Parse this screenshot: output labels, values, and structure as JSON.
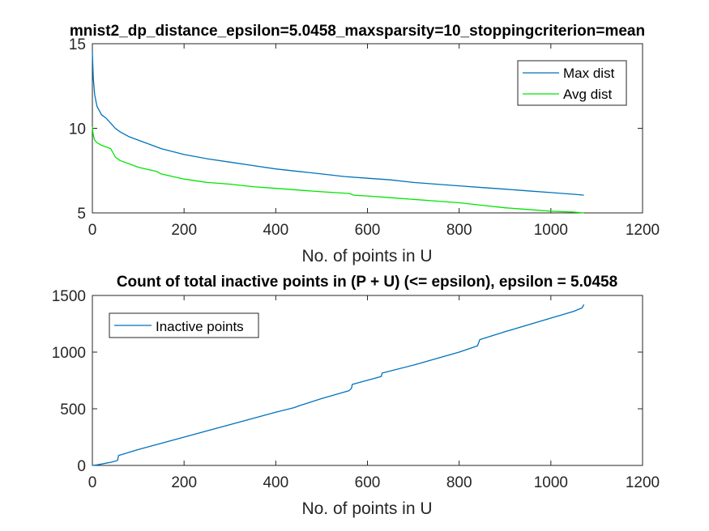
{
  "chart_data": [
    {
      "type": "line",
      "title": "mnist2_dp_distance_epsilon=5.0458_maxsparsity=10_stoppingcriterion=mean",
      "xlabel": "No. of points in U",
      "ylabel": "",
      "xlim": [
        0,
        1200
      ],
      "ylim": [
        5,
        15
      ],
      "xticks": [
        "0",
        "200",
        "400",
        "600",
        "800",
        "1000",
        "1200"
      ],
      "yticks": [
        "5",
        "10",
        "15"
      ],
      "grid": false,
      "legend": "top-right",
      "series": [
        {
          "name": "Max dist",
          "color": "#0072BD",
          "x": [
            0,
            2,
            5,
            10,
            20,
            30,
            40,
            50,
            60,
            80,
            100,
            130,
            150,
            200,
            250,
            300,
            350,
            400,
            450,
            500,
            550,
            600,
            650,
            700,
            750,
            800,
            850,
            900,
            950,
            1000,
            1050,
            1072
          ],
          "y": [
            14.5,
            13.0,
            12.0,
            11.3,
            10.8,
            10.6,
            10.3,
            10.0,
            9.8,
            9.5,
            9.3,
            9.0,
            8.8,
            8.45,
            8.2,
            8.0,
            7.8,
            7.6,
            7.45,
            7.3,
            7.15,
            7.05,
            6.95,
            6.8,
            6.7,
            6.6,
            6.5,
            6.4,
            6.3,
            6.2,
            6.1,
            6.05
          ]
        },
        {
          "name": "Avg dist",
          "color": "#00E600",
          "x": [
            0,
            2,
            5,
            10,
            20,
            40,
            50,
            60,
            80,
            100,
            140,
            150,
            200,
            250,
            300,
            350,
            400,
            450,
            500,
            560,
            570,
            600,
            650,
            700,
            750,
            800,
            850,
            900,
            950,
            1000,
            1050,
            1072
          ],
          "y": [
            10.1,
            9.6,
            9.3,
            9.15,
            9.0,
            8.8,
            8.3,
            8.1,
            7.9,
            7.7,
            7.45,
            7.3,
            7.0,
            6.8,
            6.7,
            6.55,
            6.45,
            6.35,
            6.25,
            6.15,
            6.05,
            6.0,
            5.9,
            5.8,
            5.7,
            5.6,
            5.45,
            5.3,
            5.2,
            5.1,
            5.05,
            5.0
          ]
        }
      ]
    },
    {
      "type": "line",
      "title": "Count of total inactive points in (P + U) (<= epsilon), epsilon = 5.0458",
      "xlabel": "No. of points in U",
      "ylabel": "",
      "xlim": [
        0,
        1200
      ],
      "ylim": [
        0,
        1500
      ],
      "xticks": [
        "0",
        "200",
        "400",
        "600",
        "800",
        "1000",
        "1200"
      ],
      "yticks": [
        "0",
        "500",
        "1000",
        "1500"
      ],
      "grid": false,
      "legend": "top-left",
      "series": [
        {
          "name": "Inactive points",
          "color": "#0072BD",
          "x": [
            0,
            10,
            20,
            30,
            40,
            50,
            55,
            57,
            100,
            200,
            300,
            400,
            440,
            450,
            500,
            560,
            565,
            567,
            630,
            632,
            700,
            800,
            840,
            845,
            900,
            1000,
            1050,
            1068,
            1072
          ],
          "y": [
            0,
            5,
            12,
            20,
            28,
            37,
            45,
            88,
            140,
            250,
            360,
            470,
            510,
            525,
            590,
            660,
            680,
            715,
            785,
            815,
            885,
            1000,
            1055,
            1110,
            1180,
            1300,
            1360,
            1390,
            1420
          ]
        }
      ]
    }
  ]
}
